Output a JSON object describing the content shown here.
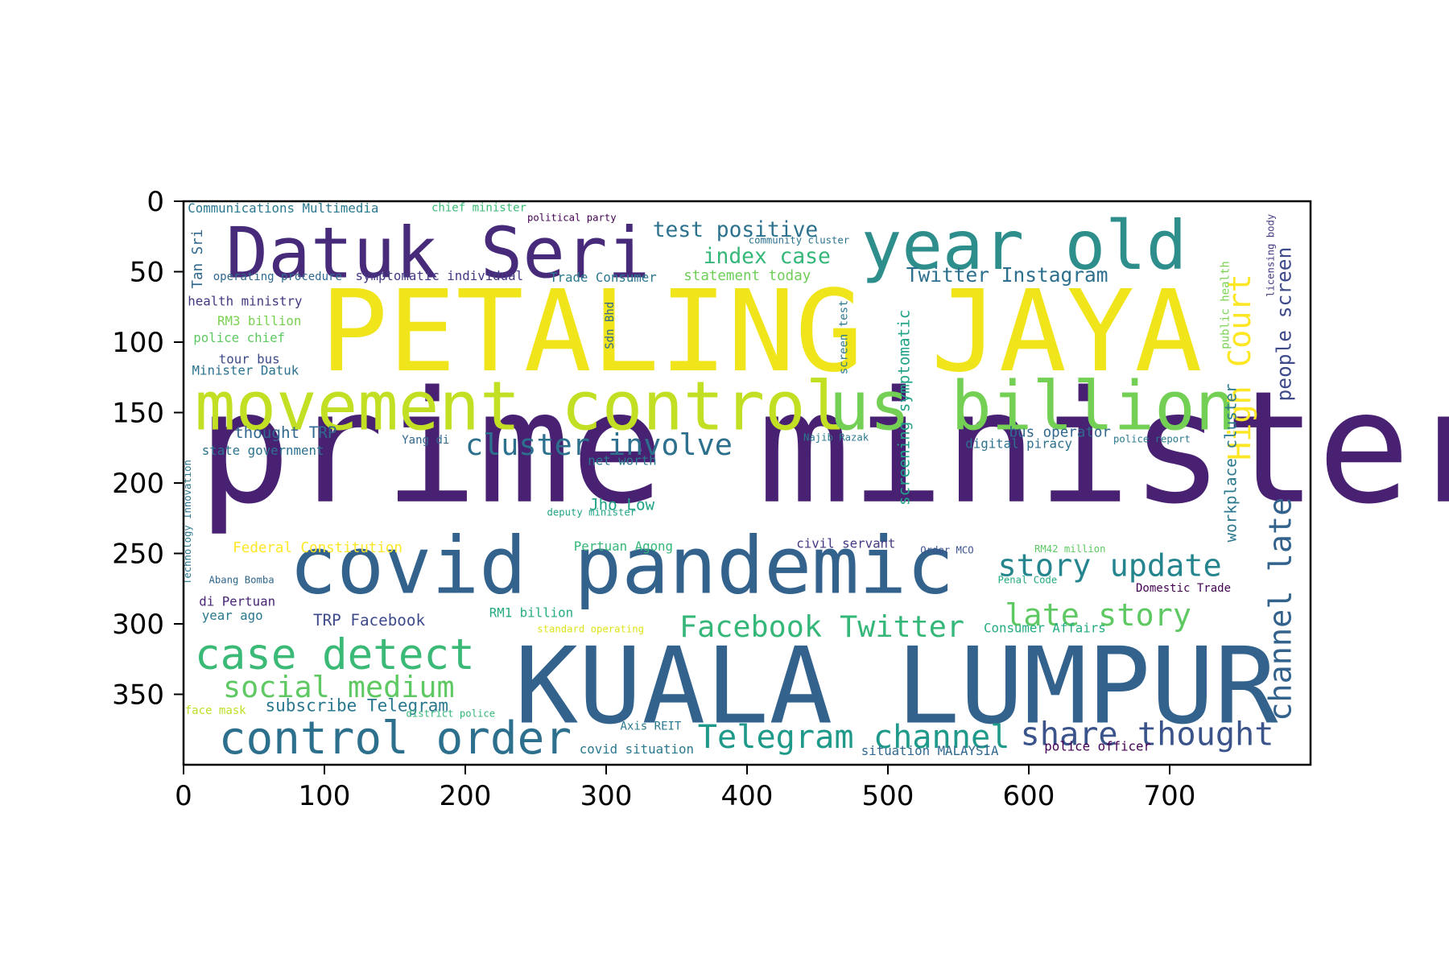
{
  "chart_data": {
    "type": "image",
    "title": "",
    "xlabel": "",
    "ylabel": "",
    "xlim": [
      0,
      800
    ],
    "ylim": [
      400,
      0
    ],
    "xticks": [
      0,
      100,
      200,
      300,
      400,
      500,
      600,
      700
    ],
    "yticks": [
      0,
      50,
      100,
      150,
      200,
      250,
      300,
      350
    ],
    "words": [
      {
        "text": "prime minister",
        "x": 10,
        "y": 213,
        "size": 110,
        "color": "#482173"
      },
      {
        "text": "PETALING JAYA",
        "x": 97,
        "y": 120,
        "size": 80,
        "color": "#f0e51b"
      },
      {
        "text": "KUALA LUMPUR",
        "x": 235,
        "y": 370,
        "size": 75,
        "color": "#33638d"
      },
      {
        "text": "covid pandemic",
        "x": 75,
        "y": 278,
        "size": 56,
        "color": "#33638d"
      },
      {
        "text": "movement control",
        "x": 8,
        "y": 162,
        "size": 48,
        "color": "#c2df23"
      },
      {
        "text": "us billion",
        "x": 458,
        "y": 162,
        "size": 48,
        "color": "#74d055"
      },
      {
        "text": "Datuk Seri",
        "x": 30,
        "y": 54,
        "size": 50,
        "color": "#472b7a"
      },
      {
        "text": "year old",
        "x": 481,
        "y": 48,
        "size": 48,
        "color": "#2d8e8c"
      },
      {
        "text": "control order",
        "x": 25,
        "y": 392,
        "size": 32,
        "color": "#2d708e"
      },
      {
        "text": "case detect",
        "x": 8,
        "y": 332,
        "size": 30,
        "color": "#3aba76"
      },
      {
        "text": "Telegram channel",
        "x": 365,
        "y": 388,
        "size": 23,
        "color": "#1f9a8a"
      },
      {
        "text": "share thought",
        "x": 594,
        "y": 386,
        "size": 23,
        "color": "#3a538b"
      },
      {
        "text": "story update",
        "x": 578,
        "y": 266,
        "size": 22,
        "color": "#25858e"
      },
      {
        "text": "late story",
        "x": 583,
        "y": 301,
        "size": 22,
        "color": "#5ec962"
      },
      {
        "text": "Facebook Twitter",
        "x": 352,
        "y": 309,
        "size": 21,
        "color": "#35b779"
      },
      {
        "text": "social medium",
        "x": 28,
        "y": 352,
        "size": 21,
        "color": "#5ec962"
      },
      {
        "text": "cluster involve",
        "x": 200,
        "y": 180,
        "size": 21,
        "color": "#2d708e"
      },
      {
        "text": "test positive",
        "x": 333,
        "y": 25,
        "size": 15,
        "color": "#2c728e"
      },
      {
        "text": "index case",
        "x": 369,
        "y": 44,
        "size": 15,
        "color": "#35b779"
      },
      {
        "text": "Twitter Instagram",
        "x": 513,
        "y": 57,
        "size": 14,
        "color": "#2d708e"
      },
      {
        "text": "statement today",
        "x": 355,
        "y": 56,
        "size": 10,
        "color": "#6ece58"
      },
      {
        "text": "subscribe Telegram",
        "x": 58,
        "y": 362,
        "size": 12,
        "color": "#2a788e"
      },
      {
        "text": "TRP Facebook",
        "x": 92,
        "y": 301,
        "size": 11,
        "color": "#3e4a89"
      },
      {
        "text": "thought TRP",
        "x": 36,
        "y": 168,
        "size": 11,
        "color": "#31688e"
      },
      {
        "text": "Jho Low",
        "x": 288,
        "y": 219,
        "size": 11,
        "color": "#20a386"
      },
      {
        "text": "bus operator",
        "x": 586,
        "y": 167,
        "size": 10,
        "color": "#31688e"
      },
      {
        "text": "Communications Multimedia",
        "x": 3,
        "y": 8,
        "size": 9,
        "color": "#2a788e"
      },
      {
        "text": "chief minister",
        "x": 176,
        "y": 7,
        "size": 8,
        "color": "#3aba76"
      },
      {
        "text": "political party",
        "x": 244,
        "y": 14,
        "size": 7,
        "color": "#440154"
      },
      {
        "text": "community cluster",
        "x": 401,
        "y": 30,
        "size": 7,
        "color": "#2c728e"
      },
      {
        "text": "operating procedure",
        "x": 21,
        "y": 56,
        "size": 8,
        "color": "#31688e"
      },
      {
        "text": "symptomatic individual",
        "x": 122,
        "y": 56,
        "size": 9,
        "color": "#443983"
      },
      {
        "text": "Trade Consumer",
        "x": 260,
        "y": 57,
        "size": 9,
        "color": "#2a788e"
      },
      {
        "text": "health ministry",
        "x": 3,
        "y": 74,
        "size": 9,
        "color": "#453781"
      },
      {
        "text": "RM3 billion",
        "x": 24,
        "y": 88,
        "size": 9,
        "color": "#7ad151"
      },
      {
        "text": "police chief",
        "x": 7,
        "y": 100,
        "size": 9,
        "color": "#5ec962"
      },
      {
        "text": "tour bus",
        "x": 25,
        "y": 115,
        "size": 9,
        "color": "#3e4a89"
      },
      {
        "text": "Minister Datuk",
        "x": 6,
        "y": 123,
        "size": 9,
        "color": "#2c728e"
      },
      {
        "text": "state government",
        "x": 13,
        "y": 180,
        "size": 9,
        "color": "#2c728e"
      },
      {
        "text": "Yang di",
        "x": 155,
        "y": 172,
        "size": 8,
        "color": "#31688e"
      },
      {
        "text": "net worth",
        "x": 287,
        "y": 187,
        "size": 9,
        "color": "#2a788e"
      },
      {
        "text": "Najib Razak",
        "x": 440,
        "y": 170,
        "size": 7,
        "color": "#2a788e"
      },
      {
        "text": "digital piracy",
        "x": 555,
        "y": 175,
        "size": 9,
        "color": "#2c728e"
      },
      {
        "text": "police report",
        "x": 660,
        "y": 171,
        "size": 7,
        "color": "#2a788e"
      },
      {
        "text": "deputy minister",
        "x": 258,
        "y": 223,
        "size": 7,
        "color": "#20a386"
      },
      {
        "text": "Federal Constitution",
        "x": 35,
        "y": 249,
        "size": 10,
        "color": "#fde725"
      },
      {
        "text": "Pertuan Agong",
        "x": 277,
        "y": 248,
        "size": 9,
        "color": "#35b779"
      },
      {
        "text": "civil servant",
        "x": 435,
        "y": 246,
        "size": 9,
        "color": "#443983"
      },
      {
        "text": "Order MCO",
        "x": 523,
        "y": 250,
        "size": 7,
        "color": "#3b528b"
      },
      {
        "text": "RM42 million",
        "x": 604,
        "y": 249,
        "size": 7,
        "color": "#5ec962"
      },
      {
        "text": "Abang Bomba",
        "x": 18,
        "y": 271,
        "size": 7,
        "color": "#31688e"
      },
      {
        "text": "Penal Code",
        "x": 578,
        "y": 271,
        "size": 7,
        "color": "#25ab82"
      },
      {
        "text": "Domestic Trade",
        "x": 676,
        "y": 277,
        "size": 8,
        "color": "#440154"
      },
      {
        "text": "di Pertuan",
        "x": 11,
        "y": 287,
        "size": 9,
        "color": "#482475"
      },
      {
        "text": "year ago",
        "x": 13,
        "y": 297,
        "size": 9,
        "color": "#2a788e"
      },
      {
        "text": "RM1 billion",
        "x": 217,
        "y": 295,
        "size": 9,
        "color": "#25ab82"
      },
      {
        "text": "standard operating",
        "x": 251,
        "y": 306,
        "size": 7,
        "color": "#dde318"
      },
      {
        "text": "Consumer Affairs",
        "x": 568,
        "y": 306,
        "size": 9,
        "color": "#25ab82"
      },
      {
        "text": "face mask",
        "x": 1,
        "y": 364,
        "size": 8,
        "color": "#bddf26"
      },
      {
        "text": "district police",
        "x": 158,
        "y": 366,
        "size": 7,
        "color": "#35b779"
      },
      {
        "text": "Axis REIT",
        "x": 310,
        "y": 375,
        "size": 8,
        "color": "#2a788e"
      },
      {
        "text": "covid situation",
        "x": 281,
        "y": 392,
        "size": 9,
        "color": "#2a788e"
      },
      {
        "text": "situation MALAYSIA",
        "x": 481,
        "y": 393,
        "size": 9,
        "color": "#31688e"
      },
      {
        "text": "police officer",
        "x": 611,
        "y": 390,
        "size": 9,
        "color": "#440154"
      }
    ],
    "vertical_words": [
      {
        "text": "Tan Sri",
        "x": 13,
        "y": 62,
        "size": 10,
        "color": "#31688e"
      },
      {
        "text": "Sdn Bhd",
        "x": 305,
        "y": 105,
        "size": 8,
        "color": "#31688e"
      },
      {
        "text": "screen test",
        "x": 471,
        "y": 123,
        "size": 8,
        "color": "#2a788e"
      },
      {
        "text": "screening symptomatic",
        "x": 515,
        "y": 216,
        "size": 11,
        "color": "#20a386"
      },
      {
        "text": "Technology Innovation",
        "x": 5,
        "y": 272,
        "size": 7,
        "color": "#2a788e"
      },
      {
        "text": "public health",
        "x": 742,
        "y": 105,
        "size": 8,
        "color": "#7ad151"
      },
      {
        "text": "licensing body",
        "x": 774,
        "y": 68,
        "size": 7,
        "color": "#453781"
      },
      {
        "text": "people screen",
        "x": 786,
        "y": 142,
        "size": 14,
        "color": "#3e4a89"
      },
      {
        "text": "High Court",
        "x": 757,
        "y": 184,
        "size": 22,
        "color": "#fde725"
      },
      {
        "text": "workplace cluster",
        "x": 747,
        "y": 242,
        "size": 11,
        "color": "#2a788e"
      },
      {
        "text": "channel late",
        "x": 786,
        "y": 369,
        "size": 22,
        "color": "#33638d"
      }
    ]
  }
}
